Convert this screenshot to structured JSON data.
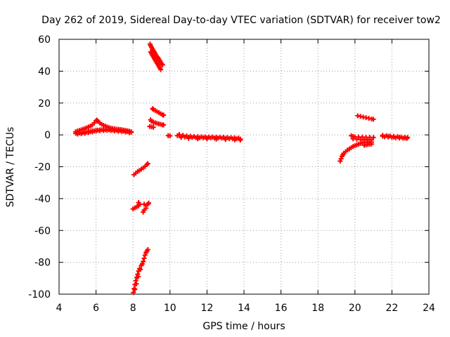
{
  "chart_data": {
    "type": "scatter",
    "title": "Day 262 of 2019, Sidereal Day-to-day VTEC variation (SDTVAR) for receiver tow2",
    "xlabel": "GPS time / hours",
    "ylabel": "SDTVAR / TECUs",
    "xlim": [
      4,
      24
    ],
    "ylim": [
      -100,
      60
    ],
    "xticks": [
      "4",
      "6",
      "8",
      "10",
      "12",
      "14",
      "16",
      "18",
      "20",
      "22",
      "24"
    ],
    "yticks": [
      "-100",
      "-80",
      "-60",
      "-40",
      "-20",
      "0",
      "20",
      "40",
      "60"
    ],
    "grid": true,
    "marker": "plus",
    "color": "#ff0000",
    "series": [
      {
        "points": [
          [
            4.9,
            1.0
          ],
          [
            5.0,
            1.3
          ],
          [
            5.1,
            1.2
          ],
          [
            5.2,
            1.5
          ],
          [
            5.3,
            1.4
          ],
          [
            5.4,
            1.8
          ],
          [
            5.5,
            1.7
          ],
          [
            5.6,
            2.2
          ],
          [
            5.7,
            2.1
          ],
          [
            5.8,
            2.6
          ],
          [
            5.9,
            2.5
          ],
          [
            6.0,
            3.0
          ],
          [
            6.1,
            2.9
          ],
          [
            6.2,
            3.1
          ],
          [
            6.3,
            3.2
          ],
          [
            6.4,
            3.3
          ],
          [
            6.5,
            3.2
          ],
          [
            6.6,
            3.4
          ],
          [
            6.7,
            3.3
          ],
          [
            6.8,
            3.2
          ],
          [
            6.9,
            3.1
          ],
          [
            7.0,
            3.0
          ],
          [
            7.1,
            2.9
          ],
          [
            7.2,
            2.8
          ],
          [
            7.3,
            2.7
          ],
          [
            7.4,
            2.5
          ],
          [
            7.5,
            2.4
          ],
          [
            7.6,
            2.3
          ],
          [
            7.7,
            2.1
          ],
          [
            7.8,
            1.9
          ],
          [
            7.9,
            1.6
          ],
          [
            4.9,
            2.0
          ],
          [
            5.0,
            2.4
          ],
          [
            5.1,
            2.8
          ],
          [
            5.2,
            3.2
          ],
          [
            5.3,
            3.6
          ],
          [
            5.4,
            4.0
          ],
          [
            5.5,
            4.5
          ],
          [
            5.6,
            5.0
          ],
          [
            5.7,
            5.5
          ],
          [
            5.8,
            6.3
          ],
          [
            5.9,
            7.5
          ],
          [
            6.0,
            8.8
          ],
          [
            6.05,
            9.3
          ],
          [
            6.1,
            8.5
          ],
          [
            6.2,
            7.5
          ],
          [
            6.3,
            6.7
          ],
          [
            6.4,
            6.0
          ],
          [
            6.5,
            5.5
          ],
          [
            6.6,
            5.0
          ],
          [
            6.7,
            4.6
          ],
          [
            6.8,
            4.3
          ],
          [
            6.9,
            4.0
          ],
          [
            7.0,
            3.8
          ],
          [
            7.1,
            3.6
          ],
          [
            7.2,
            3.5
          ],
          [
            7.3,
            3.4
          ],
          [
            7.4,
            3.2
          ],
          [
            7.5,
            3.0
          ],
          [
            7.6,
            2.8
          ],
          [
            7.7,
            2.6
          ],
          [
            7.8,
            2.3
          ],
          [
            7.9,
            2.0
          ],
          [
            5.0,
            0.5
          ],
          [
            5.2,
            0.7
          ],
          [
            5.4,
            1.0
          ],
          [
            5.6,
            1.5
          ],
          [
            5.8,
            1.9
          ],
          [
            6.0,
            2.3
          ],
          [
            6.2,
            2.6
          ],
          [
            6.4,
            2.8
          ],
          [
            6.6,
            2.9
          ],
          [
            6.8,
            2.7
          ],
          [
            7.0,
            2.5
          ],
          [
            7.2,
            2.3
          ],
          [
            7.4,
            2.1
          ],
          [
            7.6,
            1.8
          ],
          [
            7.8,
            1.4
          ]
        ]
      },
      {
        "points": [
          [
            8.92,
            57
          ],
          [
            8.95,
            56
          ],
          [
            9.0,
            55
          ],
          [
            9.05,
            54
          ],
          [
            9.1,
            53
          ],
          [
            9.15,
            52
          ],
          [
            9.2,
            51
          ],
          [
            9.25,
            50
          ],
          [
            9.3,
            49
          ],
          [
            9.35,
            48.5
          ],
          [
            9.4,
            47.5
          ],
          [
            9.45,
            46.5
          ],
          [
            9.5,
            45.5
          ],
          [
            9.55,
            44.5
          ],
          [
            9.6,
            44
          ],
          [
            8.95,
            52
          ],
          [
            9.0,
            51
          ],
          [
            9.05,
            50
          ],
          [
            9.1,
            49
          ],
          [
            9.15,
            48
          ],
          [
            9.2,
            47
          ],
          [
            9.25,
            46
          ],
          [
            9.3,
            45
          ],
          [
            9.35,
            44
          ],
          [
            9.4,
            43
          ],
          [
            9.45,
            42
          ],
          [
            9.5,
            41
          ],
          [
            9.05,
            16.5
          ],
          [
            9.1,
            16
          ],
          [
            9.2,
            15.3
          ],
          [
            9.3,
            14.6
          ],
          [
            9.4,
            14
          ],
          [
            9.5,
            13.3
          ],
          [
            9.6,
            12.6
          ],
          [
            9.65,
            12.4
          ],
          [
            8.95,
            9.5
          ],
          [
            9.0,
            8.5
          ],
          [
            9.1,
            8
          ],
          [
            9.2,
            7.6
          ],
          [
            9.3,
            7.2
          ],
          [
            9.4,
            6.9
          ],
          [
            9.5,
            6.6
          ],
          [
            9.6,
            6.3
          ],
          [
            9.65,
            6.2
          ],
          [
            8.9,
            5.3
          ],
          [
            9.0,
            5.0
          ],
          [
            9.1,
            4.8
          ],
          [
            9.9,
            -0.5
          ],
          [
            10.0,
            -0.6
          ]
        ]
      },
      {
        "points": [
          [
            8.05,
            -25
          ],
          [
            8.15,
            -24
          ],
          [
            8.25,
            -23
          ],
          [
            8.35,
            -22.3
          ],
          [
            8.45,
            -21.5
          ],
          [
            8.55,
            -20.7
          ],
          [
            8.65,
            -19.8
          ],
          [
            8.75,
            -18.7
          ],
          [
            8.8,
            -18
          ],
          [
            8.0,
            -46.5
          ],
          [
            8.1,
            -45.8
          ],
          [
            8.2,
            -45.2
          ],
          [
            8.3,
            -44.5
          ],
          [
            8.35,
            -43.5
          ],
          [
            8.3,
            -42.5
          ],
          [
            8.6,
            -43.5
          ],
          [
            8.7,
            -44.5
          ],
          [
            8.8,
            -43.5
          ],
          [
            8.85,
            -42.8
          ],
          [
            8.7,
            -46
          ],
          [
            8.6,
            -47.2
          ],
          [
            8.55,
            -48.5
          ],
          [
            8.02,
            -99
          ],
          [
            8.06,
            -96.5
          ],
          [
            8.1,
            -94
          ],
          [
            8.15,
            -91.5
          ],
          [
            8.2,
            -89.5
          ],
          [
            8.25,
            -87.5
          ],
          [
            8.3,
            -85.5
          ],
          [
            8.35,
            -84
          ],
          [
            8.45,
            -82
          ],
          [
            8.55,
            -79.5
          ],
          [
            8.6,
            -77.5
          ],
          [
            8.65,
            -75.5
          ],
          [
            8.7,
            -74
          ],
          [
            8.75,
            -73
          ],
          [
            8.8,
            -72
          ],
          [
            8.1,
            -97
          ],
          [
            8.18,
            -93.5
          ],
          [
            8.28,
            -89
          ],
          [
            8.4,
            -84.5
          ],
          [
            8.5,
            -81
          ]
        ]
      },
      {
        "points": [
          [
            10.4,
            -0.5
          ],
          [
            10.6,
            -1.0
          ],
          [
            10.8,
            -1.3
          ],
          [
            11.0,
            -1.5
          ],
          [
            11.2,
            -1.6
          ],
          [
            11.4,
            -1.7
          ],
          [
            11.6,
            -1.8
          ],
          [
            11.8,
            -1.8
          ],
          [
            12.0,
            -1.9
          ],
          [
            12.2,
            -1.9
          ],
          [
            12.4,
            -2.0
          ],
          [
            12.6,
            -2.0
          ],
          [
            12.8,
            -2.1
          ],
          [
            13.0,
            -2.2
          ],
          [
            13.2,
            -2.3
          ],
          [
            13.4,
            -2.4
          ],
          [
            13.6,
            -2.5
          ],
          [
            13.8,
            -2.6
          ],
          [
            10.5,
            0.3
          ],
          [
            10.7,
            -0.2
          ],
          [
            10.9,
            -0.6
          ],
          [
            11.1,
            -0.8
          ],
          [
            11.3,
            -1.0
          ],
          [
            11.5,
            -1.1
          ],
          [
            11.7,
            -1.2
          ],
          [
            11.9,
            -1.2
          ],
          [
            12.1,
            -1.3
          ],
          [
            12.3,
            -1.3
          ],
          [
            12.5,
            -1.4
          ],
          [
            12.7,
            -1.4
          ],
          [
            12.9,
            -1.5
          ],
          [
            13.1,
            -1.6
          ],
          [
            13.3,
            -1.7
          ],
          [
            13.5,
            -1.8
          ],
          [
            13.7,
            -2.0
          ],
          [
            10.6,
            -1.6
          ],
          [
            11.0,
            -2.2
          ],
          [
            11.5,
            -2.5
          ],
          [
            12.0,
            -2.6
          ],
          [
            12.5,
            -2.7
          ],
          [
            13.0,
            -2.9
          ],
          [
            13.5,
            -3.1
          ],
          [
            13.8,
            -3.3
          ]
        ]
      },
      {
        "points": [
          [
            19.2,
            -16.5
          ],
          [
            19.25,
            -15
          ],
          [
            19.3,
            -13.5
          ],
          [
            19.35,
            -12.5
          ],
          [
            19.4,
            -11.5
          ],
          [
            19.5,
            -10.5
          ],
          [
            19.6,
            -9.5
          ],
          [
            19.7,
            -8.8
          ],
          [
            19.8,
            -8.0
          ],
          [
            19.9,
            -7.3
          ],
          [
            20.0,
            -6.7
          ],
          [
            20.1,
            -6.2
          ],
          [
            20.2,
            -5.8
          ],
          [
            20.3,
            -5.4
          ],
          [
            20.4,
            -5.0
          ],
          [
            20.5,
            -4.8
          ],
          [
            20.6,
            -4.7
          ],
          [
            20.7,
            -4.6
          ],
          [
            20.8,
            -4.5
          ],
          [
            20.9,
            -4.5
          ],
          [
            20.5,
            -6.5
          ],
          [
            20.6,
            -6.2
          ],
          [
            20.7,
            -6.0
          ],
          [
            20.8,
            -5.8
          ],
          [
            20.9,
            -5.8
          ],
          [
            19.8,
            -0.5
          ],
          [
            19.9,
            -1.0
          ],
          [
            20.0,
            -1.2
          ],
          [
            20.2,
            -1.3
          ],
          [
            20.4,
            -1.4
          ],
          [
            20.6,
            -1.5
          ],
          [
            20.8,
            -1.5
          ],
          [
            21.0,
            -1.6
          ],
          [
            19.9,
            -2.5
          ],
          [
            20.1,
            -2.7
          ],
          [
            20.3,
            -2.9
          ],
          [
            20.5,
            -3.0
          ],
          [
            20.7,
            -3.0
          ],
          [
            20.9,
            -3.1
          ],
          [
            20.15,
            12.0
          ],
          [
            20.3,
            11.6
          ],
          [
            20.45,
            11.2
          ],
          [
            20.6,
            10.8
          ],
          [
            20.75,
            10.4
          ],
          [
            20.9,
            10.0
          ],
          [
            21.0,
            9.8
          ]
        ]
      },
      {
        "points": [
          [
            21.5,
            -0.3
          ],
          [
            21.7,
            -0.5
          ],
          [
            21.9,
            -0.7
          ],
          [
            22.1,
            -0.9
          ],
          [
            22.3,
            -1.1
          ],
          [
            22.5,
            -1.3
          ],
          [
            22.7,
            -1.5
          ],
          [
            22.85,
            -1.6
          ],
          [
            21.6,
            -1.2
          ],
          [
            21.8,
            -1.4
          ],
          [
            22.0,
            -1.6
          ],
          [
            22.2,
            -1.8
          ],
          [
            22.4,
            -2.0
          ],
          [
            22.6,
            -2.1
          ],
          [
            22.8,
            -2.2
          ],
          [
            21.5,
            -0.8
          ],
          [
            21.8,
            -0.9
          ],
          [
            22.1,
            -1.3
          ],
          [
            22.4,
            -1.5
          ],
          [
            22.7,
            -1.9
          ]
        ]
      }
    ]
  }
}
